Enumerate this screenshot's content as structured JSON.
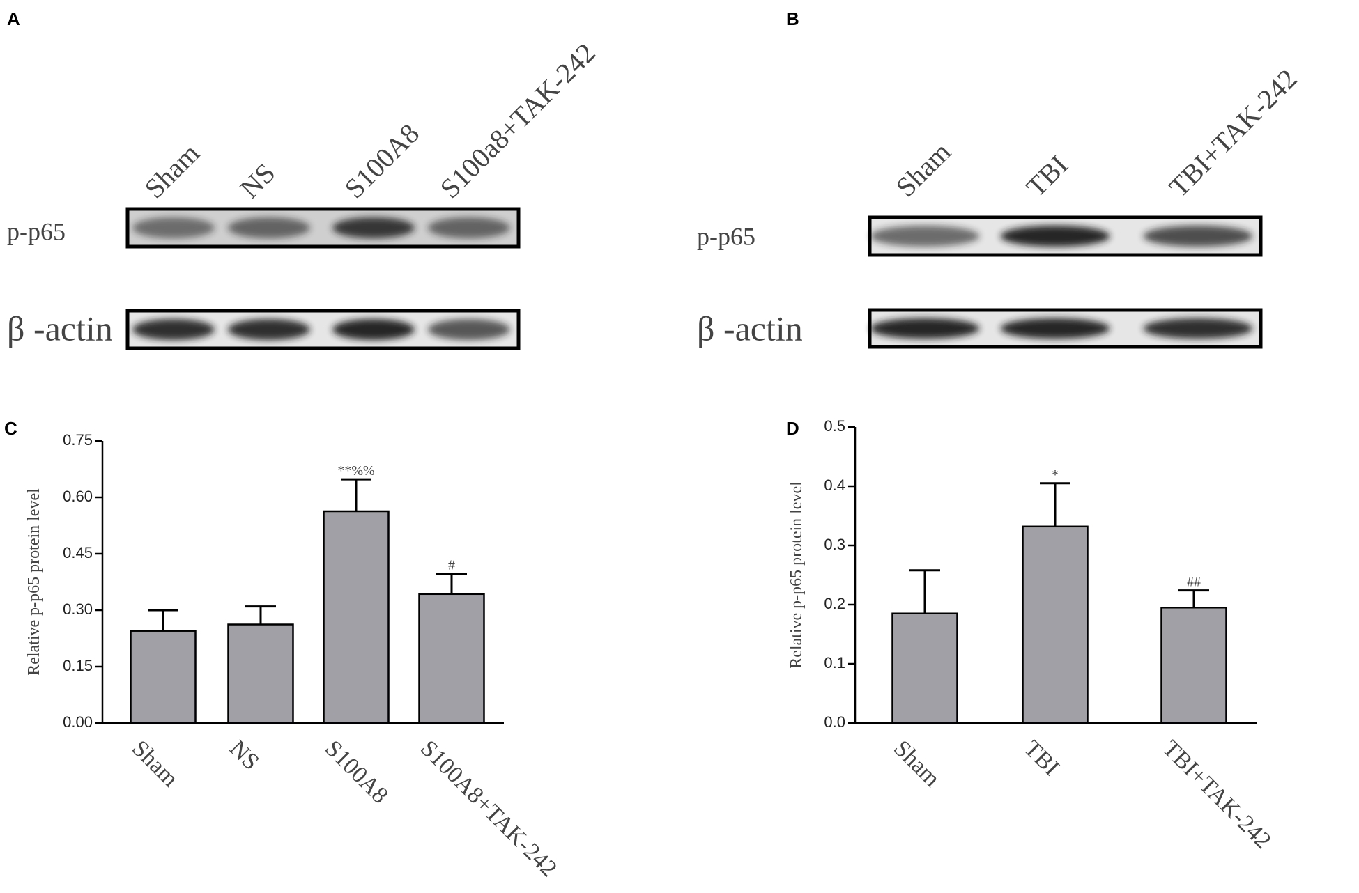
{
  "panels": [
    "A",
    "B",
    "C",
    "D"
  ],
  "blots": [
    {
      "lanes": [
        "Sham",
        "NS",
        "S100A8",
        "S100a8+TAK-242"
      ],
      "rows": [
        "p-p65",
        "β -actin"
      ]
    },
    {
      "lanes": [
        "Sham",
        "TBI",
        "TBI+TAK-242"
      ],
      "rows": [
        "p-p65",
        "β -actin"
      ]
    }
  ],
  "chart_data": [
    {
      "type": "bar",
      "y_label": "Relative p-p65 protein level",
      "categories": [
        "Sham",
        "NS",
        "S100A8",
        "S100A8+TAK-242"
      ],
      "values": [
        0.245,
        0.262,
        0.563,
        0.343
      ],
      "errors": [
        0.055,
        0.048,
        0.085,
        0.054
      ],
      "annotations": [
        null,
        null,
        "**%%",
        "#"
      ],
      "color": "#a0a0a6",
      "ylim": [
        0,
        0.75
      ],
      "yticks": [
        {
          "value": 0,
          "label": "0.00"
        },
        0.15,
        {
          "value": 0.3,
          "label": "0.30"
        },
        0.45,
        {
          "value": 0.6,
          "label": "0.60"
        },
        0.75
      ]
    },
    {
      "type": "bar",
      "y_label": "Relative p-p65 protein level",
      "categories": [
        "Sham",
        "TBI",
        "TBI+TAK-242"
      ],
      "values": [
        0.185,
        0.332,
        0.195
      ],
      "errors": [
        0.073,
        0.073,
        0.029
      ],
      "annotations": [
        null,
        "*",
        "##"
      ],
      "color": "#a0a0a6",
      "ylim": [
        0,
        0.5
      ],
      "yticks": [
        {
          "value": 0,
          "label": "0.0"
        },
        0.1,
        0.2,
        0.3,
        0.4,
        0.5
      ]
    }
  ]
}
